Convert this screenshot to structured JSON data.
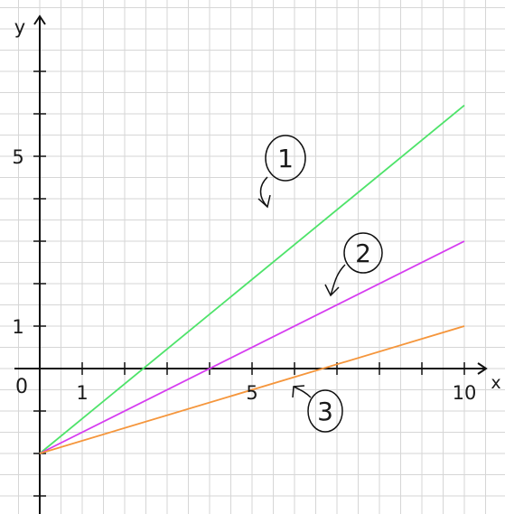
{
  "chart_data": {
    "type": "line",
    "xlabel": "x",
    "ylabel": "y",
    "origin_label": "0",
    "x_tick_labels": [
      {
        "value": 1,
        "label": "1"
      },
      {
        "value": 5,
        "label": "5"
      },
      {
        "value": 10,
        "label": "10"
      }
    ],
    "y_tick_labels": [
      {
        "value": 1,
        "label": "1"
      },
      {
        "value": 5,
        "label": "5"
      }
    ],
    "x_ticks": [
      1,
      2,
      3,
      4,
      5,
      6,
      7,
      8,
      9,
      10
    ],
    "y_ticks": [
      -3,
      -2,
      -1,
      1,
      2,
      3,
      4,
      5,
      6,
      7
    ],
    "xlim": [
      -0.9,
      11
    ],
    "ylim": [
      -3.5,
      8.6
    ],
    "grid": true,
    "series": [
      {
        "name": "1",
        "color": "#4ee36a",
        "x": [
          0,
          10
        ],
        "y": [
          -2,
          6.2
        ]
      },
      {
        "name": "2",
        "color": "#d63cf0",
        "x": [
          0,
          10
        ],
        "y": [
          -2,
          3
        ]
      },
      {
        "name": "3",
        "color": "#f5963c",
        "x": [
          0,
          10
        ],
        "y": [
          -2,
          1
        ]
      }
    ],
    "annotations": [
      {
        "label": "1",
        "series": "1"
      },
      {
        "label": "2",
        "series": "2"
      },
      {
        "label": "3",
        "series": "3"
      }
    ]
  }
}
